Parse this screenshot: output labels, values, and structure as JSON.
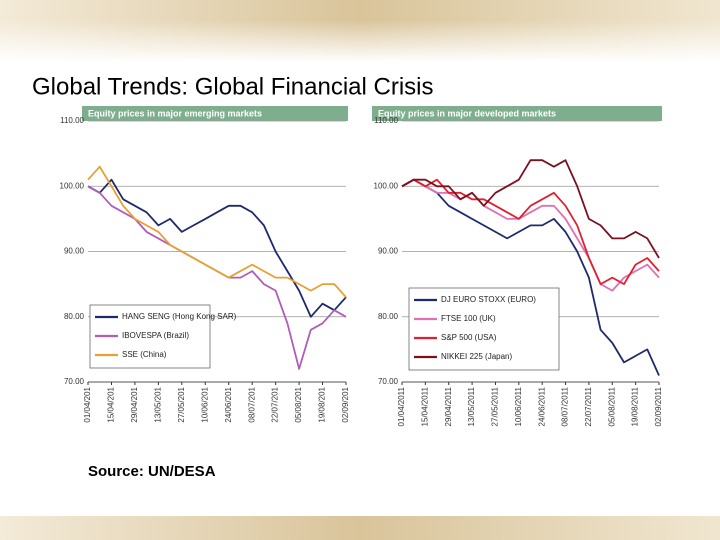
{
  "title": "Global Trends:  Global Financial Crisis",
  "source": "Source: UN/DESA",
  "chart_data": [
    {
      "type": "line",
      "title": "Equity prices in major emerging markets",
      "categories": [
        "01/04/201",
        null,
        "15/04/201",
        null,
        "29/04/201",
        null,
        "13/05/201",
        null,
        "27/05/201",
        null,
        "10/06/201",
        null,
        "24/06/201",
        null,
        "08/07/201",
        null,
        "22/07/201",
        null,
        "05/08/201",
        null,
        "19/08/201",
        null,
        "02/09/201"
      ],
      "ylim": [
        70,
        110
      ],
      "yticks": [
        {
          "value": 70,
          "label": "70.00"
        },
        {
          "value": 80,
          "label": "80.00"
        },
        {
          "value": 90,
          "label": "90.00"
        },
        {
          "value": 100,
          "label": "100.00"
        },
        {
          "value": 110,
          "label": "110.00"
        }
      ],
      "grid": true,
      "legend": "lower left",
      "series": [
        {
          "name": "HANG SENG (Hong Kong SAR)",
          "color": "#1f2a6b",
          "values": [
            100,
            99,
            101,
            98,
            97,
            96,
            94,
            95,
            93,
            94,
            95,
            96,
            97,
            97,
            96,
            94,
            90,
            87,
            84,
            80,
            82,
            81,
            83
          ]
        },
        {
          "name": "IBOVESPA (Brazil)",
          "color": "#b05cb8",
          "values": [
            100,
            99,
            97,
            96,
            95,
            93,
            92,
            91,
            90,
            89,
            88,
            87,
            86,
            86,
            87,
            85,
            84,
            79,
            72,
            78,
            79,
            81,
            80
          ]
        },
        {
          "name": "SSE (China)",
          "color": "#e8a030",
          "values": [
            101,
            103,
            100,
            97,
            95,
            94,
            93,
            91,
            90,
            89,
            88,
            87,
            86,
            87,
            88,
            87,
            86,
            86,
            85,
            84,
            85,
            85,
            83
          ]
        }
      ]
    },
    {
      "type": "line",
      "title": "Equity prices in major developed markets",
      "categories": [
        "01/04/2011",
        null,
        "15/04/2011",
        null,
        "29/04/2011",
        null,
        "13/05/2011",
        null,
        "27/05/2011",
        null,
        "10/06/2011",
        null,
        "24/06/2011",
        null,
        "08/07/2011",
        null,
        "22/07/2011",
        null,
        "05/08/2011",
        null,
        "19/08/2011",
        null,
        "02/09/2011"
      ],
      "ylim": [
        70,
        110
      ],
      "yticks": [
        {
          "value": 70,
          "label": "70.00"
        },
        {
          "value": 80,
          "label": "80.00"
        },
        {
          "value": 90,
          "label": "90.00"
        },
        {
          "value": 100,
          "label": "100.00"
        },
        {
          "value": 110,
          "label": "110.00"
        }
      ],
      "grid": true,
      "legend": "lower left",
      "series": [
        {
          "name": "DJ EURO STOXX (EURO)",
          "color": "#1f2a6b",
          "values": [
            100,
            101,
            100,
            99,
            97,
            96,
            95,
            94,
            93,
            92,
            93,
            94,
            94,
            95,
            93,
            90,
            86,
            78,
            76,
            73,
            74,
            75,
            71
          ]
        },
        {
          "name": "FTSE 100 (UK)",
          "color": "#e070b0",
          "values": [
            100,
            101,
            100,
            99,
            99,
            98,
            99,
            97,
            96,
            95,
            95,
            96,
            97,
            97,
            95,
            92,
            89,
            85,
            84,
            86,
            87,
            88,
            86
          ]
        },
        {
          "name": "S&P 500 (USA)",
          "color": "#e02030",
          "values": [
            100,
            101,
            100,
            101,
            99,
            99,
            98,
            98,
            97,
            96,
            95,
            97,
            98,
            99,
            97,
            94,
            89,
            85,
            86,
            85,
            88,
            89,
            87
          ]
        },
        {
          "name": "NIKKEI 225 (Japan)",
          "color": "#7a1020",
          "values": [
            100,
            101,
            101,
            100,
            100,
            98,
            99,
            97,
            99,
            100,
            101,
            104,
            104,
            103,
            104,
            100,
            95,
            94,
            92,
            92,
            93,
            92,
            89
          ]
        }
      ]
    }
  ]
}
